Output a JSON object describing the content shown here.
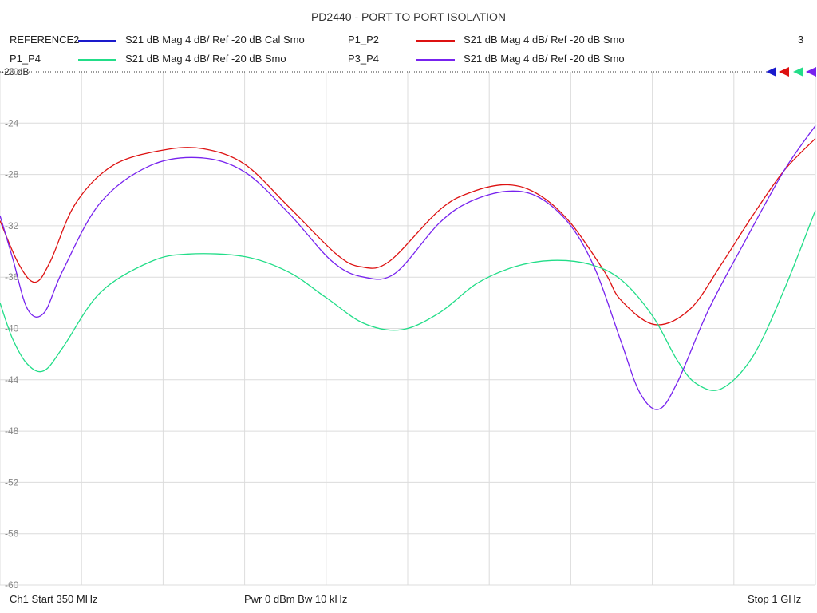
{
  "chart_data": {
    "type": "line",
    "title": "PD2440 - PORT TO PORT ISOLATION",
    "channel_number": "3",
    "ref_label": "-20 dB",
    "xlabel": "",
    "ylabel": "",
    "x_range_mhz": [
      350,
      1000
    ],
    "ylim": [
      -60,
      -20
    ],
    "y_ticks": [
      "-20",
      "-24",
      "-28",
      "-32",
      "-36",
      "-40",
      "-44",
      "-48",
      "-52",
      "-56",
      "-60"
    ],
    "grid": true,
    "legend_position": "top",
    "legend": [
      {
        "name": "REFERENCE2",
        "desc": "S21  dB Mag  4 dB/ Ref -20 dB  Cal Smo",
        "color": "#1a1acc"
      },
      {
        "name": "P1_P2",
        "desc": "S21  dB Mag  4 dB/ Ref -20 dB  Smo",
        "color": "#dd1111"
      },
      {
        "name": "P1_P4",
        "desc": "S21  dB Mag  4 dB/ Ref -20 dB  Smo",
        "color": "#22dd88"
      },
      {
        "name": "P3_P4",
        "desc": "S21  dB Mag  4 dB/ Ref -20 dB  Smo",
        "color": "#7722ee"
      }
    ],
    "series": [
      {
        "name": "P1_P2",
        "color": "#dd1111",
        "x": [
          350,
          365,
          378,
          390,
          410,
          440,
          480,
          512,
          545,
          580,
          618,
          638,
          660,
          700,
          725,
          755,
          780,
          805,
          832,
          845,
          872,
          900,
          925,
          950,
          975,
          1000
        ],
        "y": [
          -31.6,
          -35.0,
          -36.4,
          -34.8,
          -30.3,
          -27.3,
          -26.1,
          -26.0,
          -27.2,
          -30.5,
          -34.2,
          -35.2,
          -34.8,
          -30.8,
          -29.4,
          -28.8,
          -29.6,
          -31.8,
          -35.6,
          -37.8,
          -39.7,
          -38.5,
          -35.0,
          -31.2,
          -27.7,
          -25.2
        ]
      },
      {
        "name": "P1_P4",
        "color": "#22dd88",
        "x": [
          350,
          360,
          372,
          385,
          400,
          430,
          470,
          500,
          545,
          580,
          610,
          640,
          670,
          700,
          730,
          760,
          790,
          820,
          845,
          870,
          890,
          905,
          925,
          950,
          975,
          1000
        ],
        "y": [
          -38.0,
          -40.8,
          -42.8,
          -43.3,
          -41.5,
          -37.2,
          -34.8,
          -34.2,
          -34.4,
          -35.6,
          -37.6,
          -39.6,
          -40.1,
          -38.8,
          -36.5,
          -35.2,
          -34.7,
          -35.0,
          -36.2,
          -39.0,
          -42.5,
          -44.3,
          -44.7,
          -42.2,
          -37.0,
          -30.8
        ]
      },
      {
        "name": "P3_P4",
        "color": "#7722ee",
        "x": [
          350,
          360,
          372,
          385,
          400,
          430,
          470,
          510,
          545,
          580,
          615,
          640,
          665,
          700,
          725,
          755,
          780,
          805,
          825,
          845,
          860,
          875,
          890,
          915,
          945,
          975,
          1000
        ],
        "y": [
          -31.2,
          -34.5,
          -38.5,
          -38.8,
          -35.5,
          -30.2,
          -27.3,
          -26.7,
          -27.8,
          -31.0,
          -34.8,
          -36.0,
          -35.7,
          -31.8,
          -30.1,
          -29.3,
          -29.8,
          -32.0,
          -35.5,
          -41.0,
          -45.0,
          -46.3,
          -44.2,
          -38.5,
          -33.0,
          -27.7,
          -24.2
        ]
      }
    ]
  },
  "footer": {
    "start": "Ch1  Start  350 MHz",
    "mid": "Pwr  0 dBm  Bw  10 kHz",
    "stop": "Stop  1 GHz"
  }
}
